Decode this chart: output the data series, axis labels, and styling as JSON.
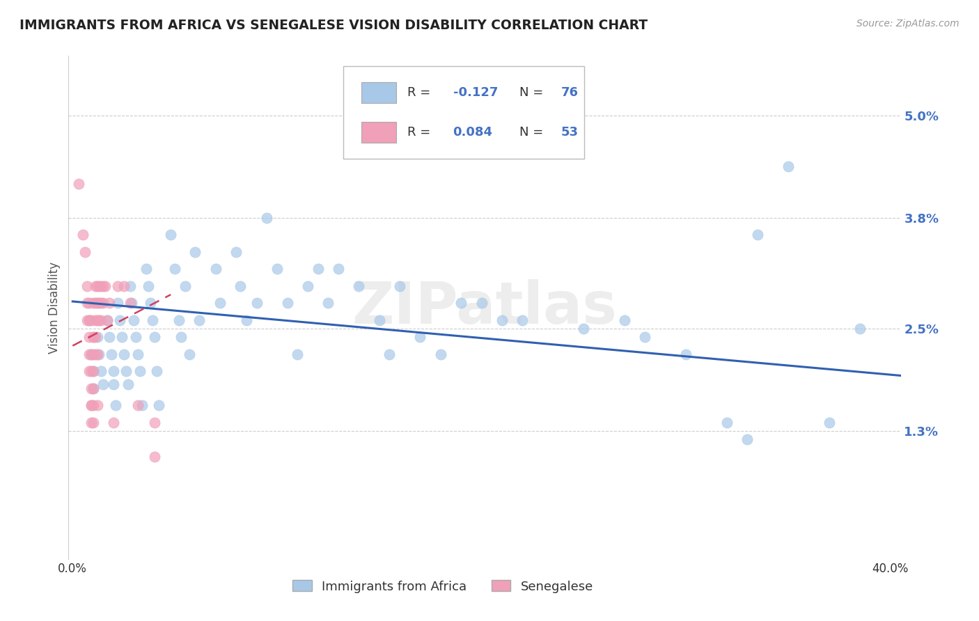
{
  "title": "IMMIGRANTS FROM AFRICA VS SENEGALESE VISION DISABILITY CORRELATION CHART",
  "source_text": "Source: ZipAtlas.com",
  "ylabel": "Vision Disability",
  "xlim": [
    -0.002,
    0.405
  ],
  "ylim": [
    -0.002,
    0.057
  ],
  "yticks": [
    0.013,
    0.025,
    0.038,
    0.05
  ],
  "ytick_labels": [
    "1.3%",
    "2.5%",
    "3.8%",
    "5.0%"
  ],
  "xticks": [
    0.0,
    0.1,
    0.2,
    0.3,
    0.4
  ],
  "xtick_labels": [
    "0.0%",
    "",
    "",
    "",
    "40.0%"
  ],
  "watermark": "ZIPatlas",
  "color_blue": "#a8c8e8",
  "color_pink": "#f0a0b8",
  "line_color_blue": "#3060b0",
  "line_color_pink": "#d04060",
  "background_color": "#ffffff",
  "blue_line_x": [
    0.0,
    0.405
  ],
  "blue_line_y": [
    0.0282,
    0.0195
  ],
  "pink_line_x": [
    0.0,
    0.048
  ],
  "pink_line_y": [
    0.023,
    0.029
  ],
  "scatter_blue": [
    [
      0.008,
      0.026
    ],
    [
      0.009,
      0.022
    ],
    [
      0.01,
      0.02
    ],
    [
      0.01,
      0.018
    ],
    [
      0.012,
      0.024
    ],
    [
      0.013,
      0.022
    ],
    [
      0.014,
      0.02
    ],
    [
      0.015,
      0.0185
    ],
    [
      0.017,
      0.026
    ],
    [
      0.018,
      0.024
    ],
    [
      0.019,
      0.022
    ],
    [
      0.02,
      0.02
    ],
    [
      0.02,
      0.0185
    ],
    [
      0.021,
      0.016
    ],
    [
      0.022,
      0.028
    ],
    [
      0.023,
      0.026
    ],
    [
      0.024,
      0.024
    ],
    [
      0.025,
      0.022
    ],
    [
      0.026,
      0.02
    ],
    [
      0.027,
      0.0185
    ],
    [
      0.028,
      0.03
    ],
    [
      0.029,
      0.028
    ],
    [
      0.03,
      0.026
    ],
    [
      0.031,
      0.024
    ],
    [
      0.032,
      0.022
    ],
    [
      0.033,
      0.02
    ],
    [
      0.034,
      0.016
    ],
    [
      0.036,
      0.032
    ],
    [
      0.037,
      0.03
    ],
    [
      0.038,
      0.028
    ],
    [
      0.039,
      0.026
    ],
    [
      0.04,
      0.024
    ],
    [
      0.041,
      0.02
    ],
    [
      0.042,
      0.016
    ],
    [
      0.048,
      0.036
    ],
    [
      0.05,
      0.032
    ],
    [
      0.052,
      0.026
    ],
    [
      0.053,
      0.024
    ],
    [
      0.055,
      0.03
    ],
    [
      0.057,
      0.022
    ],
    [
      0.06,
      0.034
    ],
    [
      0.062,
      0.026
    ],
    [
      0.07,
      0.032
    ],
    [
      0.072,
      0.028
    ],
    [
      0.08,
      0.034
    ],
    [
      0.082,
      0.03
    ],
    [
      0.085,
      0.026
    ],
    [
      0.09,
      0.028
    ],
    [
      0.095,
      0.038
    ],
    [
      0.1,
      0.032
    ],
    [
      0.105,
      0.028
    ],
    [
      0.11,
      0.022
    ],
    [
      0.115,
      0.03
    ],
    [
      0.12,
      0.032
    ],
    [
      0.125,
      0.028
    ],
    [
      0.13,
      0.032
    ],
    [
      0.14,
      0.03
    ],
    [
      0.15,
      0.026
    ],
    [
      0.155,
      0.022
    ],
    [
      0.16,
      0.03
    ],
    [
      0.17,
      0.024
    ],
    [
      0.18,
      0.022
    ],
    [
      0.19,
      0.028
    ],
    [
      0.2,
      0.028
    ],
    [
      0.21,
      0.026
    ],
    [
      0.22,
      0.026
    ],
    [
      0.25,
      0.025
    ],
    [
      0.27,
      0.026
    ],
    [
      0.28,
      0.024
    ],
    [
      0.3,
      0.022
    ],
    [
      0.32,
      0.014
    ],
    [
      0.33,
      0.012
    ],
    [
      0.335,
      0.036
    ],
    [
      0.35,
      0.044
    ],
    [
      0.37,
      0.014
    ],
    [
      0.385,
      0.025
    ]
  ],
  "scatter_pink": [
    [
      0.003,
      0.042
    ],
    [
      0.005,
      0.036
    ],
    [
      0.006,
      0.034
    ],
    [
      0.007,
      0.03
    ],
    [
      0.007,
      0.028
    ],
    [
      0.007,
      0.026
    ],
    [
      0.008,
      0.028
    ],
    [
      0.008,
      0.026
    ],
    [
      0.008,
      0.024
    ],
    [
      0.008,
      0.022
    ],
    [
      0.008,
      0.02
    ],
    [
      0.009,
      0.018
    ],
    [
      0.009,
      0.016
    ],
    [
      0.009,
      0.026
    ],
    [
      0.009,
      0.022
    ],
    [
      0.009,
      0.02
    ],
    [
      0.009,
      0.016
    ],
    [
      0.009,
      0.014
    ],
    [
      0.01,
      0.024
    ],
    [
      0.01,
      0.022
    ],
    [
      0.01,
      0.018
    ],
    [
      0.01,
      0.016
    ],
    [
      0.01,
      0.028
    ],
    [
      0.01,
      0.024
    ],
    [
      0.01,
      0.02
    ],
    [
      0.01,
      0.014
    ],
    [
      0.011,
      0.03
    ],
    [
      0.011,
      0.026
    ],
    [
      0.011,
      0.024
    ],
    [
      0.011,
      0.028
    ],
    [
      0.011,
      0.022
    ],
    [
      0.012,
      0.03
    ],
    [
      0.012,
      0.026
    ],
    [
      0.012,
      0.022
    ],
    [
      0.012,
      0.016
    ],
    [
      0.012,
      0.028
    ],
    [
      0.013,
      0.03
    ],
    [
      0.013,
      0.026
    ],
    [
      0.013,
      0.028
    ],
    [
      0.014,
      0.03
    ],
    [
      0.014,
      0.026
    ],
    [
      0.014,
      0.028
    ],
    [
      0.015,
      0.028
    ],
    [
      0.015,
      0.03
    ],
    [
      0.016,
      0.03
    ],
    [
      0.017,
      0.026
    ],
    [
      0.018,
      0.028
    ],
    [
      0.02,
      0.014
    ],
    [
      0.022,
      0.03
    ],
    [
      0.025,
      0.03
    ],
    [
      0.028,
      0.028
    ],
    [
      0.032,
      0.016
    ],
    [
      0.04,
      0.014
    ],
    [
      0.04,
      0.01
    ]
  ]
}
